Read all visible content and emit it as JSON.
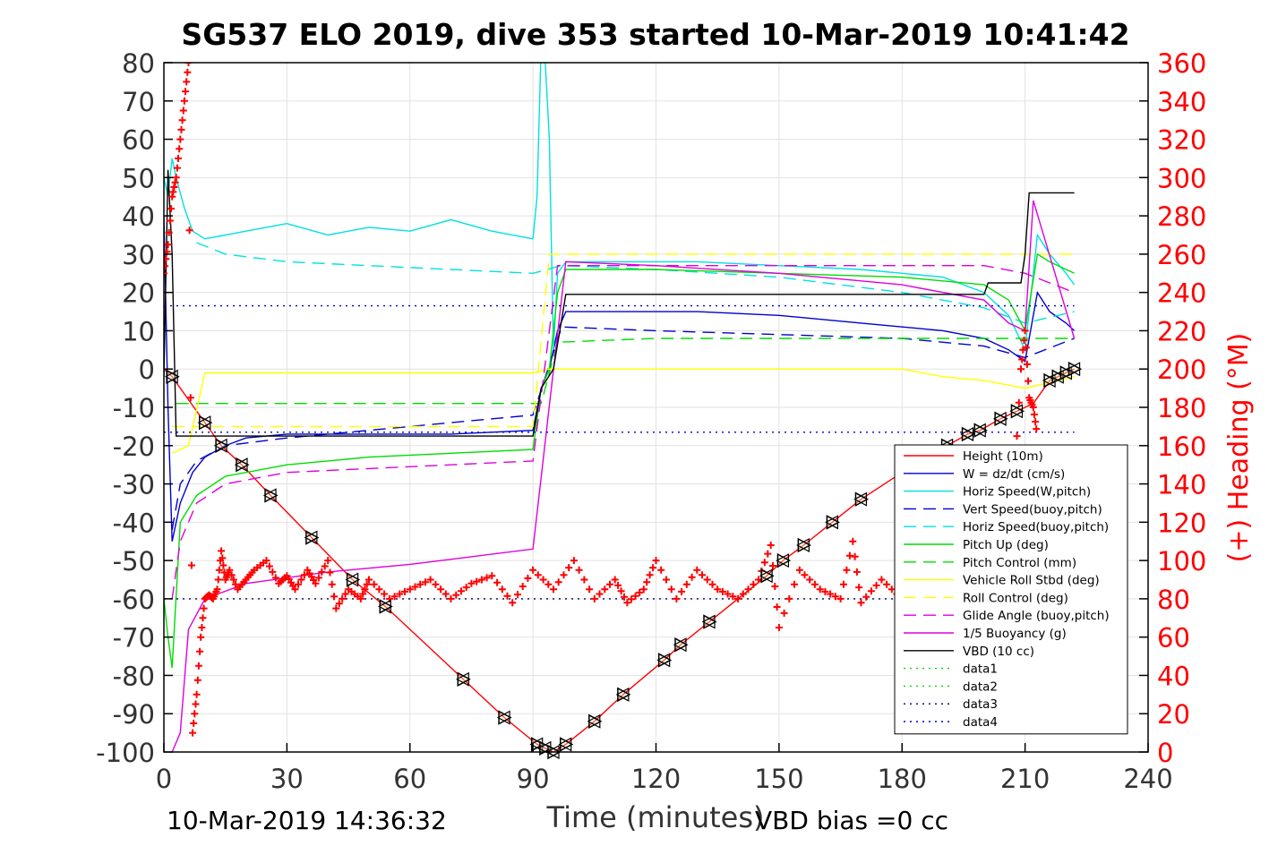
{
  "chart_data": {
    "type": "line",
    "title": "SG537 ELO 2019, dive 353 started 10-Mar-2019 10:41:42",
    "xlabel": "Time (minutes)",
    "ylabel": "",
    "y2label": "(+) Heading (°M)",
    "xlim": [
      0,
      240
    ],
    "ylim": [
      -100,
      80
    ],
    "y2lim": [
      0,
      360
    ],
    "xticks": [
      0,
      30,
      60,
      90,
      120,
      150,
      180,
      210,
      240
    ],
    "yticks": [
      80,
      70,
      60,
      50,
      40,
      30,
      20,
      10,
      0,
      -10,
      -20,
      -30,
      -40,
      -50,
      -60,
      -70,
      -80,
      -90,
      -100
    ],
    "y2ticks": [
      360,
      340,
      320,
      300,
      280,
      260,
      240,
      220,
      200,
      180,
      160,
      140,
      120,
      100,
      80,
      60,
      40,
      20,
      0
    ],
    "grid": true,
    "legend_position": "bottom-right",
    "series": [
      {
        "name": "Height (10m)",
        "color": "#ff0000",
        "style": "solid",
        "marker": "triangle",
        "x": [
          0,
          2,
          10,
          14,
          19,
          26,
          36,
          46,
          54,
          73,
          83,
          91,
          93,
          95,
          98,
          105,
          112,
          122,
          126,
          133,
          147,
          151,
          156,
          163,
          170,
          180,
          191,
          196,
          199,
          204,
          208,
          212,
          216,
          218,
          220,
          222
        ],
        "y": [
          0,
          -2,
          -14,
          -20,
          -25,
          -33,
          -44,
          -55,
          -62,
          -81,
          -91,
          -98,
          -99,
          -100,
          -98,
          -92,
          -85,
          -76,
          -72,
          -66,
          -54,
          -50,
          -46,
          -40,
          -34,
          -27,
          -20,
          -17,
          -16,
          -13,
          -11,
          -9,
          -3,
          -2,
          -1,
          0
        ]
      },
      {
        "name": "W = dz/dt (cm/s)",
        "color": "#0000cc",
        "style": "solid",
        "x": [
          0,
          1,
          2,
          4,
          7,
          10,
          15,
          20,
          30,
          50,
          70,
          90,
          92,
          94,
          96,
          98,
          110,
          130,
          150,
          170,
          190,
          200,
          206,
          210,
          213,
          216,
          220,
          222
        ],
        "y": [
          40,
          -10,
          -45,
          -35,
          -27,
          -23,
          -20,
          -18,
          -17,
          -17,
          -17,
          -16,
          -5,
          0,
          10,
          15,
          15,
          15,
          14,
          12,
          10,
          8,
          5,
          2,
          20,
          15,
          12,
          10
        ]
      },
      {
        "name": "Horiz Speed(W,pitch)",
        "color": "#00e0e0",
        "style": "solid",
        "x": [
          0,
          1,
          2,
          3,
          5,
          7,
          10,
          20,
          30,
          40,
          50,
          60,
          70,
          80,
          90,
          91,
          92,
          93,
          94,
          95,
          96,
          98,
          110,
          130,
          150,
          170,
          190,
          200,
          206,
          210,
          213,
          216,
          220,
          222
        ],
        "y": [
          50,
          45,
          55,
          50,
          42,
          36,
          34,
          36,
          38,
          35,
          37,
          36,
          39,
          36,
          34,
          45,
          85,
          80,
          60,
          5,
          25,
          28,
          28,
          28,
          27,
          26,
          24,
          20,
          14,
          5,
          35,
          30,
          25,
          22
        ]
      },
      {
        "name": "Vert Speed(buoy,pitch)",
        "color": "#0000cc",
        "style": "dashed",
        "x": [
          2,
          4,
          8,
          15,
          30,
          50,
          70,
          90,
          97,
          120,
          150,
          180,
          200,
          210,
          222
        ],
        "y": [
          -42,
          -30,
          -24,
          -20,
          -18,
          -16,
          -14,
          -12,
          11,
          10,
          9,
          8,
          6,
          3,
          8
        ]
      },
      {
        "name": "Horiz Speed(buoy,pitch)",
        "color": "#00e0e0",
        "style": "dashed",
        "x": [
          8,
          15,
          30,
          50,
          70,
          90,
          97,
          120,
          150,
          180,
          200,
          210,
          222
        ],
        "y": [
          33,
          30,
          28,
          27,
          26,
          25,
          27,
          26,
          24,
          20,
          16,
          12,
          15
        ]
      },
      {
        "name": "Pitch Up (deg)",
        "color": "#00dd00",
        "style": "solid",
        "x": [
          0,
          1,
          2,
          4,
          8,
          15,
          30,
          50,
          70,
          90,
          92,
          94,
          96,
          98,
          120,
          150,
          180,
          200,
          206,
          210,
          213,
          216,
          220,
          222
        ],
        "y": [
          -60,
          -70,
          -78,
          -40,
          -33,
          -28,
          -25,
          -23,
          -22,
          -21,
          -5,
          0,
          20,
          26,
          26,
          25,
          24,
          22,
          18,
          10,
          30,
          28,
          26,
          25
        ]
      },
      {
        "name": "Pitch Control (mm)",
        "color": "#00dd00",
        "style": "dashed",
        "x": [
          3,
          20,
          40,
          60,
          80,
          92,
          96,
          120,
          150,
          180,
          200,
          210,
          222
        ],
        "y": [
          -9,
          -9,
          -9,
          -9,
          -9,
          -9,
          7,
          8,
          8,
          8,
          8,
          8,
          8
        ]
      },
      {
        "name": "Vehicle Roll Stbd (deg)",
        "color": "#ffff00",
        "style": "solid",
        "x": [
          2,
          6,
          10,
          20,
          40,
          60,
          80,
          90,
          94,
          100,
          120,
          150,
          180,
          190,
          200,
          210,
          222
        ],
        "y": [
          -22,
          -20,
          -1,
          -1,
          -1,
          -1,
          -1,
          -1,
          0,
          0,
          0,
          0,
          0,
          -2,
          -3,
          -5,
          -2
        ]
      },
      {
        "name": "Roll Control (deg)",
        "color": "#ffff00",
        "style": "dashed",
        "x": [
          2,
          10,
          30,
          60,
          90,
          94,
          120,
          150,
          180,
          210,
          222
        ],
        "y": [
          -15,
          -15,
          -15,
          -15,
          -15,
          30,
          30,
          30,
          30,
          30,
          30
        ]
      },
      {
        "name": "Glide Angle (buoy,pitch)",
        "color": "#dd00dd",
        "style": "dashed",
        "x": [
          2,
          4,
          8,
          15,
          30,
          50,
          70,
          90,
          96,
          120,
          150,
          180,
          200,
          210,
          222
        ],
        "y": [
          -60,
          -45,
          -35,
          -30,
          -27,
          -26,
          -25,
          -24,
          27,
          27,
          27,
          27,
          27,
          25,
          20
        ]
      },
      {
        "name": "1/5 Buoyancy (g)",
        "color": "#dd00dd",
        "style": "solid",
        "x": [
          2,
          4,
          6,
          10,
          20,
          40,
          60,
          90,
          98,
          120,
          150,
          180,
          200,
          206,
          210,
          212,
          222
        ],
        "y": [
          -100,
          -95,
          -68,
          -60,
          -56,
          -53,
          -51,
          -47,
          28,
          27,
          25,
          22,
          18,
          12,
          10,
          44,
          8
        ]
      },
      {
        "name": "VBD (10 cc)",
        "color": "#000000",
        "style": "solid",
        "x": [
          0,
          1,
          2,
          3,
          90,
          92,
          95,
          98,
          120,
          150,
          180,
          200,
          201,
          209,
          210,
          211,
          216,
          222
        ],
        "y": [
          -2,
          52,
          30,
          -17.5,
          -17.5,
          -5,
          0,
          19.5,
          19.5,
          19.5,
          19.5,
          19.5,
          22.5,
          22.5,
          30,
          46,
          46,
          46
        ]
      },
      {
        "name": "data1",
        "color": "#00dd00",
        "style": "dotted",
        "x": [],
        "y": []
      },
      {
        "name": "data2",
        "color": "#00dd00",
        "style": "dotted",
        "x": [],
        "y": []
      },
      {
        "name": "data3",
        "color": "#000066",
        "style": "dotted",
        "x": [
          0,
          222
        ],
        "y": [
          -60,
          -60
        ]
      },
      {
        "name": "data4",
        "color": "#0000cc",
        "style": "dotted",
        "x": [
          0,
          222
        ],
        "y": [
          16.5,
          16.5
        ]
      }
    ],
    "extra_lines": [
      {
        "color": "#0000cc",
        "style": "dotted",
        "x": [
          0,
          222
        ],
        "y": [
          -16.5,
          -16.5
        ]
      }
    ],
    "heading": {
      "axis": "right",
      "color": "#ff0000",
      "marker": "plus",
      "x": [
        0,
        1,
        2,
        3,
        4,
        5,
        6,
        7,
        8,
        9,
        10,
        11,
        12,
        13,
        14,
        15,
        16,
        18,
        20,
        22,
        25,
        28,
        30,
        32,
        35,
        37,
        40,
        42,
        45,
        48,
        50,
        55,
        60,
        65,
        70,
        75,
        80,
        85,
        90,
        95,
        100,
        105,
        110,
        113,
        117,
        120,
        125,
        130,
        135,
        140,
        145,
        148,
        150,
        155,
        160,
        165,
        168,
        170,
        175,
        180,
        185,
        190,
        195,
        200,
        205,
        207,
        209,
        210,
        211,
        212,
        213
      ],
      "y": [
        250,
        265,
        290,
        300,
        320,
        340,
        360,
        10,
        30,
        60,
        80,
        82,
        80,
        85,
        105,
        90,
        95,
        85,
        90,
        95,
        100,
        88,
        92,
        85,
        95,
        88,
        100,
        75,
        85,
        80,
        90,
        80,
        85,
        90,
        80,
        88,
        92,
        78,
        95,
        85,
        100,
        80,
        90,
        78,
        85,
        100,
        80,
        95,
        85,
        80,
        90,
        108,
        65,
        95,
        85,
        80,
        110,
        78,
        90,
        80,
        85,
        90,
        75,
        100,
        110,
        130,
        200,
        220,
        185,
        180,
        165
      ]
    },
    "markers_triangle": {
      "x": [
        2,
        10,
        14,
        19,
        26,
        36,
        46,
        54,
        73,
        83,
        91,
        93,
        95,
        98,
        105,
        112,
        122,
        126,
        133,
        147,
        151,
        156,
        163,
        170,
        191,
        196,
        199,
        204,
        208,
        216,
        218,
        220,
        222
      ],
      "y": [
        -2,
        -14,
        -20,
        -25,
        -33,
        -44,
        -55,
        -62,
        -81,
        -91,
        -98,
        -99,
        -100,
        -98,
        -92,
        -85,
        -76,
        -72,
        -66,
        -54,
        -50,
        -46,
        -40,
        -34,
        -20,
        -17,
        -16,
        -13,
        -11,
        -3,
        -2,
        -1,
        0
      ]
    }
  },
  "footer": {
    "end_time": "10-Mar-2019 14:36:32",
    "vbd_bias": "VBD bias =0 cc"
  }
}
